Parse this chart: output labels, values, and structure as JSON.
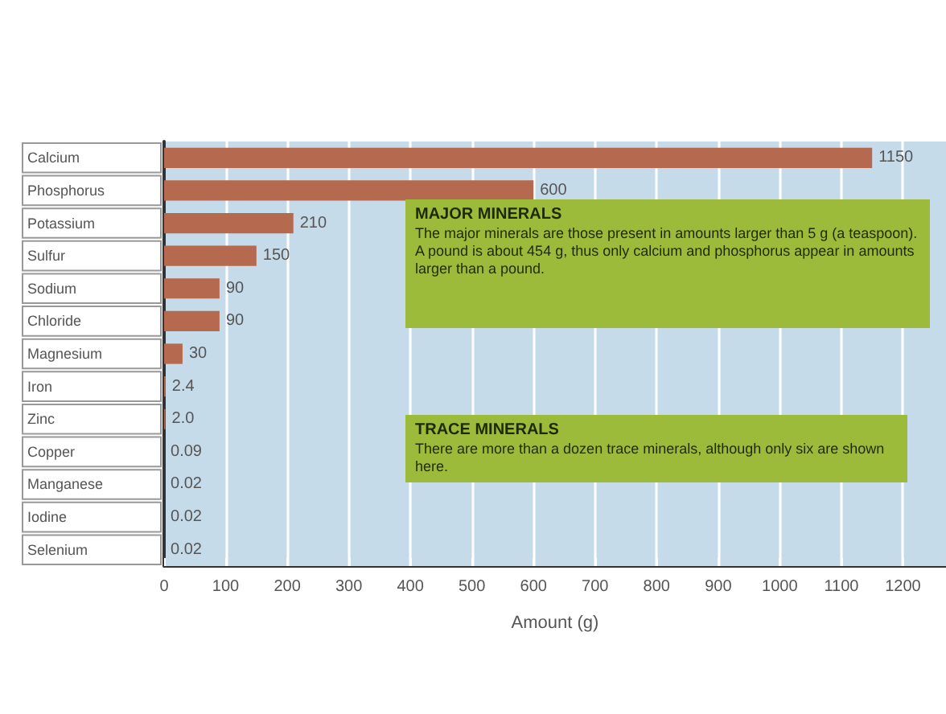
{
  "chart_data": {
    "type": "bar",
    "orientation": "horizontal",
    "xlabel": "Amount (g)",
    "categories": [
      "Calcium",
      "Phosphorus",
      "Potassium",
      "Sulfur",
      "Sodium",
      "Chloride",
      "Magnesium",
      "Iron",
      "Zinc",
      "Copper",
      "Manganese",
      "Iodine",
      "Selenium"
    ],
    "values": [
      1150,
      600,
      210,
      150,
      90,
      90,
      30,
      2.4,
      2,
      0.09,
      0.02,
      0.02,
      0.02
    ],
    "value_labels": [
      "1150",
      "600",
      "210",
      "150",
      "90",
      "90",
      "30",
      "2.4",
      "2.0",
      "0.09",
      "0.02",
      "0.02",
      "0.02"
    ],
    "color": "#b5694f",
    "xlim": [
      0,
      1270
    ],
    "xticks": [
      0,
      100,
      200,
      300,
      400,
      500,
      600,
      700,
      800,
      900,
      1000,
      1100,
      1200
    ],
    "grid": "x",
    "annotations": [
      "MAJOR MINERALS\nThe major minerals are those present in amounts larger than 5 g (a teaspoon). A pound is about 454 g, thus only calcium and phosphorus appear in amounts larger than a pound.",
      "TRACE MINERALS\nThere are more than a dozen trace minerals, although only six are shown here."
    ]
  }
}
